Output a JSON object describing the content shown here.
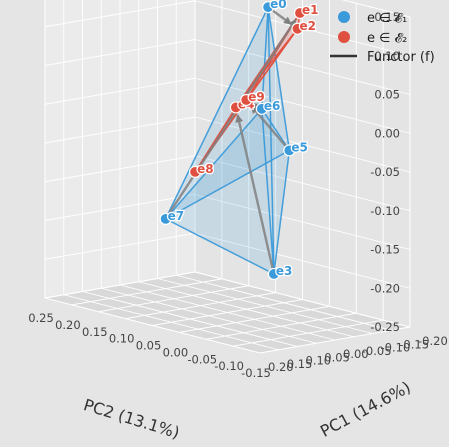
{
  "chart_data": {
    "type": "scatter3d",
    "title": "",
    "xlabel": "PC1 (14.6%)",
    "ylabel": "PC2 (13.1%)",
    "zlabel": "",
    "x_ticks": [
      "-0.20",
      "-0.15",
      "-0.10",
      "-0.05",
      "0.00",
      "0.05",
      "0.10",
      "0.15",
      "0.20"
    ],
    "y_ticks": [
      "-0.15",
      "-0.10",
      "-0.05",
      "0.00",
      "0.05",
      "0.10",
      "0.15",
      "0.20",
      "0.25"
    ],
    "z_ticks": [
      "-0.25",
      "-0.20",
      "-0.15",
      "-0.10",
      "-0.05",
      "0.00",
      "0.05",
      "0.10",
      "0.15"
    ],
    "xlim": [
      -0.2,
      0.2
    ],
    "ylim": [
      -0.15,
      0.25
    ],
    "zlim": [
      -0.25,
      0.15
    ],
    "grid": true,
    "legend_position": "top-right",
    "legend": [
      {
        "label": "e ∈ 𝓔₁",
        "color": "#3b9ad9",
        "kind": "marker"
      },
      {
        "label": "e ∈ 𝓔₂",
        "color": "#e05040",
        "kind": "marker"
      },
      {
        "label": "Functor (f)",
        "color": "#333333",
        "kind": "line"
      }
    ],
    "colors": {
      "E1": "#3b9ad9",
      "E2": "#e05040",
      "functor": "#808080"
    },
    "nodes": [
      {
        "id": "e0",
        "set": "E1",
        "label": "e0",
        "x": -0.18,
        "y": 0.1,
        "z": 0.12
      },
      {
        "id": "e3",
        "set": "E1",
        "label": "e3",
        "x": 0.12,
        "y": -0.12,
        "z": -0.16
      },
      {
        "id": "e5",
        "set": "E1",
        "label": "e5",
        "x": 0.05,
        "y": -0.1,
        "z": -0.01
      },
      {
        "id": "e6",
        "set": "E1",
        "label": "e6",
        "x": -0.02,
        "y": 0.0,
        "z": 0.02
      },
      {
        "id": "e7",
        "set": "E1",
        "label": "e7",
        "x": -0.05,
        "y": 0.2,
        "z": -0.16
      },
      {
        "id": "e1",
        "set": "E2",
        "label": "e1",
        "x": -0.05,
        "y": -0.05,
        "z": 0.15
      },
      {
        "id": "e2",
        "set": "E2",
        "label": "e2",
        "x": 0.1,
        "y": -0.15,
        "z": 0.16
      },
      {
        "id": "e4",
        "set": "E2",
        "label": "e4",
        "x": -0.18,
        "y": 0.16,
        "z": -0.02
      },
      {
        "id": "e8",
        "set": "E2",
        "label": "e8",
        "x": -0.1,
        "y": 0.18,
        "z": -0.1
      },
      {
        "id": "e9",
        "set": "E2",
        "label": "e9",
        "x": -0.05,
        "y": 0.05,
        "z": 0.02
      }
    ],
    "edges": [
      [
        "e0",
        "e3"
      ],
      [
        "e0",
        "e5"
      ],
      [
        "e0",
        "e6"
      ],
      [
        "e0",
        "e7"
      ],
      [
        "e3",
        "e5"
      ],
      [
        "e3",
        "e6"
      ],
      [
        "e3",
        "e7"
      ],
      [
        "e5",
        "e6"
      ],
      [
        "e5",
        "e7"
      ],
      [
        "e6",
        "e7"
      ],
      [
        "e1",
        "e2"
      ],
      [
        "e1",
        "e4"
      ],
      [
        "e1",
        "e8"
      ],
      [
        "e1",
        "e9"
      ],
      [
        "e2",
        "e4"
      ],
      [
        "e2",
        "e8"
      ],
      [
        "e2",
        "e9"
      ],
      [
        "e4",
        "e8"
      ],
      [
        "e4",
        "e9"
      ],
      [
        "e8",
        "e9"
      ]
    ],
    "faces": [
      {
        "set": "E1",
        "nodes": [
          "e0",
          "e3",
          "e7"
        ]
      },
      {
        "set": "E1",
        "nodes": [
          "e0",
          "e5",
          "e3"
        ]
      },
      {
        "set": "E1",
        "nodes": [
          "e5",
          "e6",
          "e7"
        ]
      },
      {
        "set": "E2",
        "nodes": [
          "e2",
          "e1",
          "e4"
        ]
      },
      {
        "set": "E2",
        "nodes": [
          "e2",
          "e9",
          "e8"
        ]
      },
      {
        "set": "E2",
        "nodes": [
          "e1",
          "e9",
          "e4"
        ]
      }
    ],
    "functor": [
      [
        "e0",
        "e2"
      ],
      [
        "e3",
        "e4"
      ],
      [
        "e5",
        "e9"
      ],
      [
        "e6",
        "e9"
      ],
      [
        "e7",
        "e1"
      ]
    ]
  }
}
